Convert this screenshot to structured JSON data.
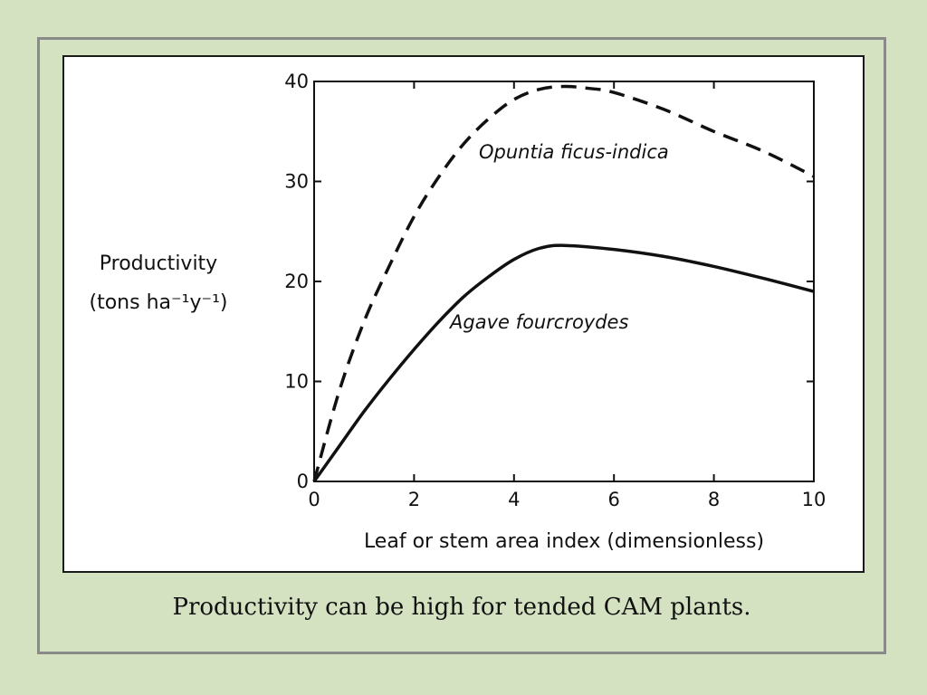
{
  "caption": "Productivity can be high for tended CAM plants.",
  "chart_data": {
    "type": "line",
    "xlabel": "Leaf or stem area index (dimensionless)",
    "ylabel_line1": "Productivity",
    "ylabel_line2": "(tons ha⁻¹y⁻¹)",
    "xlim": [
      0,
      10
    ],
    "ylim": [
      0,
      40
    ],
    "x_ticks": [
      0,
      2,
      4,
      6,
      8,
      10
    ],
    "y_ticks": [
      0,
      10,
      20,
      30,
      40
    ],
    "grid": false,
    "series": [
      {
        "name": "Opuntia ficus-indica",
        "style": "dashed",
        "color": "#111111",
        "x": [
          0,
          0.5,
          1,
          1.5,
          2,
          2.5,
          3,
          3.5,
          4,
          4.5,
          5,
          5.5,
          6,
          7,
          8,
          9,
          10
        ],
        "y": [
          0,
          9,
          16,
          21.5,
          26.5,
          30.5,
          33.8,
          36.3,
          38.2,
          39.2,
          39.5,
          39.3,
          38.9,
          37.2,
          35,
          33,
          30.5
        ]
      },
      {
        "name": "Agave fourcroydes",
        "style": "solid",
        "color": "#111111",
        "x": [
          0,
          0.5,
          1,
          1.5,
          2,
          2.5,
          3,
          3.5,
          4,
          4.5,
          5,
          6,
          7,
          8,
          9,
          10
        ],
        "y": [
          0,
          3.5,
          7,
          10.2,
          13.2,
          16,
          18.5,
          20.5,
          22.2,
          23.3,
          23.6,
          23.2,
          22.5,
          21.5,
          20.3,
          19
        ]
      }
    ]
  }
}
